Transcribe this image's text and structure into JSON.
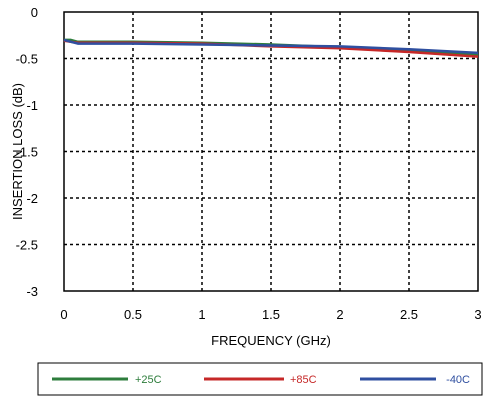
{
  "chart_data": {
    "type": "line",
    "xlabel": "FREQUENCY (GHz)",
    "ylabel": "INSERTION LOSS  (dB)",
    "xlim": [
      0,
      3
    ],
    "ylim": [
      -3,
      0
    ],
    "grid": true,
    "legend_placement": "bottom",
    "x_ticks": [
      "0",
      "0.5",
      "1",
      "1.5",
      "2",
      "2.5",
      "3"
    ],
    "y_ticks": [
      "0",
      "-0.5",
      "-1",
      "-1.5",
      "-2",
      "-2.5",
      "-3"
    ],
    "x": [
      0.0,
      0.05,
      0.1,
      0.2,
      0.5,
      1.0,
      1.5,
      2.0,
      2.5,
      3.0
    ],
    "series": [
      {
        "name": "+25C",
        "color": "#2e7d3c",
        "values": [
          -0.3,
          -0.3,
          -0.32,
          -0.32,
          -0.32,
          -0.33,
          -0.35,
          -0.38,
          -0.41,
          -0.46
        ]
      },
      {
        "name": "+85C",
        "color": "#c62828",
        "values": [
          -0.31,
          -0.32,
          -0.33,
          -0.33,
          -0.33,
          -0.34,
          -0.37,
          -0.39,
          -0.43,
          -0.48
        ]
      },
      {
        "name": "-40C",
        "color": "#2f4fa0",
        "values": [
          -0.3,
          -0.32,
          -0.34,
          -0.34,
          -0.34,
          -0.35,
          -0.36,
          -0.37,
          -0.4,
          -0.44
        ]
      }
    ]
  }
}
